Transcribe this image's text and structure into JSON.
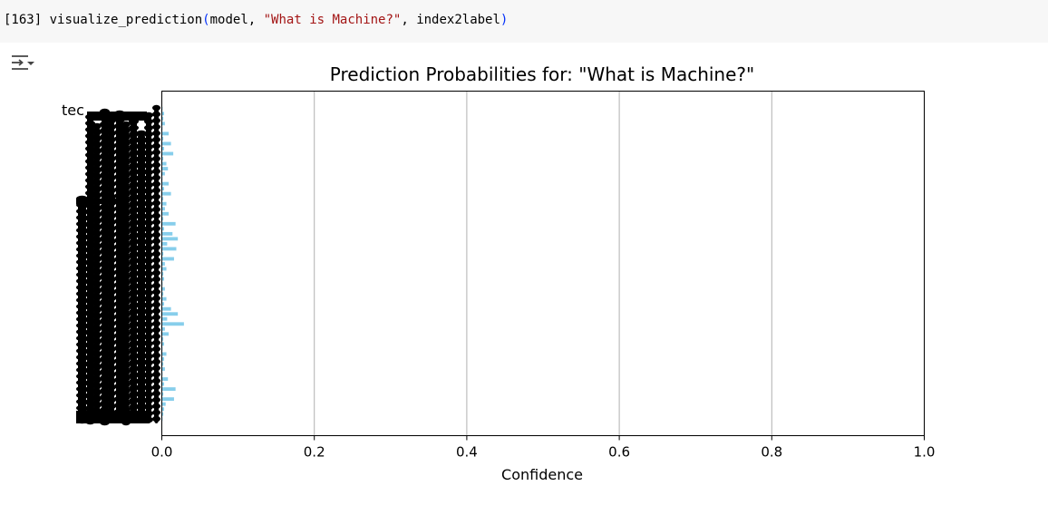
{
  "cell": {
    "execution_count": "[163]",
    "code": {
      "func": "visualize_prediction",
      "open_paren": "(",
      "arg1": "model, ",
      "string_arg": "\"What is Machine?\"",
      "arg3": ", index2label",
      "close_paren": ")"
    }
  },
  "output": {
    "toggle_icon": "output-toggle-icon"
  },
  "chart_data": {
    "type": "bar",
    "orientation": "horizontal",
    "title": "Prediction Probabilities for: \"What is Machine?\"",
    "xlabel": "Confidence",
    "ylabel": "",
    "xlim": [
      0,
      1
    ],
    "xticks": [
      "0.0",
      "0.2",
      "0.4",
      "0.6",
      "0.8",
      "1.0"
    ],
    "grid": "x",
    "bar_color": "#87ceeb",
    "visible_label_fragment": "tec",
    "values": [
      0.001,
      0.003,
      0.002,
      0.004,
      0.001,
      0.009,
      0.002,
      0.012,
      0.003,
      0.015,
      0.002,
      0.006,
      0.008,
      0.004,
      0.001,
      0.009,
      0.003,
      0.012,
      0.002,
      0.006,
      0.004,
      0.009,
      0.002,
      0.018,
      0.003,
      0.014,
      0.021,
      0.007,
      0.019,
      0.002,
      0.016,
      0.004,
      0.006,
      0.002,
      0.003,
      0.001,
      0.004,
      0.002,
      0.006,
      0.003,
      0.012,
      0.021,
      0.007,
      0.029,
      0.004,
      0.009,
      0.002,
      0.003,
      0.001,
      0.006,
      0.003,
      0.002,
      0.004,
      0.001,
      0.008,
      0.003,
      0.018,
      0.002,
      0.016,
      0.005,
      0.003,
      0.002,
      0.001
    ]
  }
}
